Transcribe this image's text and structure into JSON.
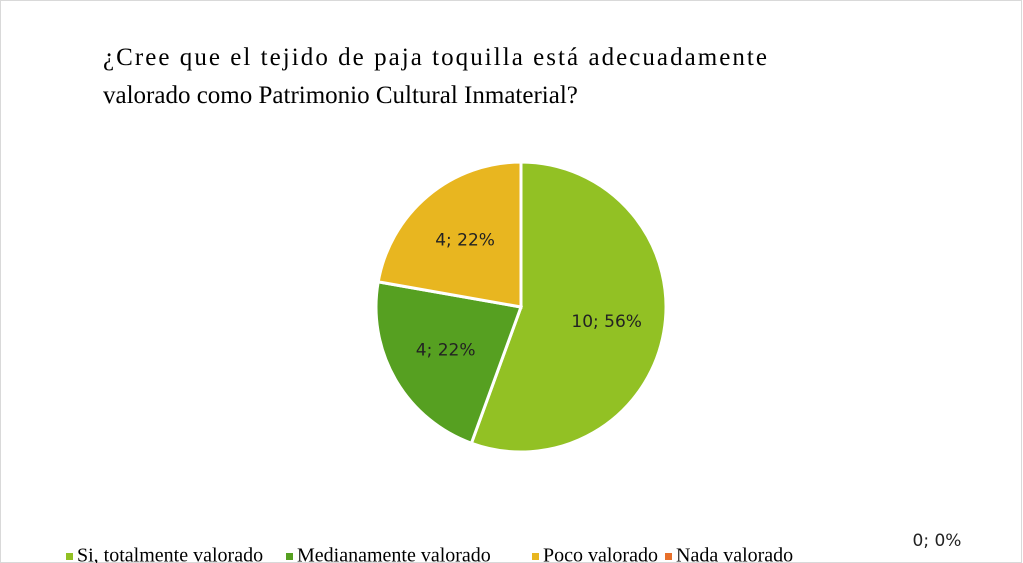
{
  "chart_data": {
    "type": "pie",
    "title": "¿Cree que el tejido de paja toquilla está adecuadamente valorado como Patrimonio Cultural Inmaterial?",
    "categories": [
      "Si, totalmente valorado",
      "Medianamente valorado",
      "Poco valorado",
      "Nada valorado"
    ],
    "values": [
      10,
      4,
      4,
      0
    ],
    "value_labels": [
      "10; 56%",
      "4; 22%",
      "4; 22%",
      "0; 0%"
    ],
    "colors": [
      "#92c124",
      "#56a021",
      "#e8b620",
      "#e8702a"
    ],
    "legend": "bottom"
  }
}
